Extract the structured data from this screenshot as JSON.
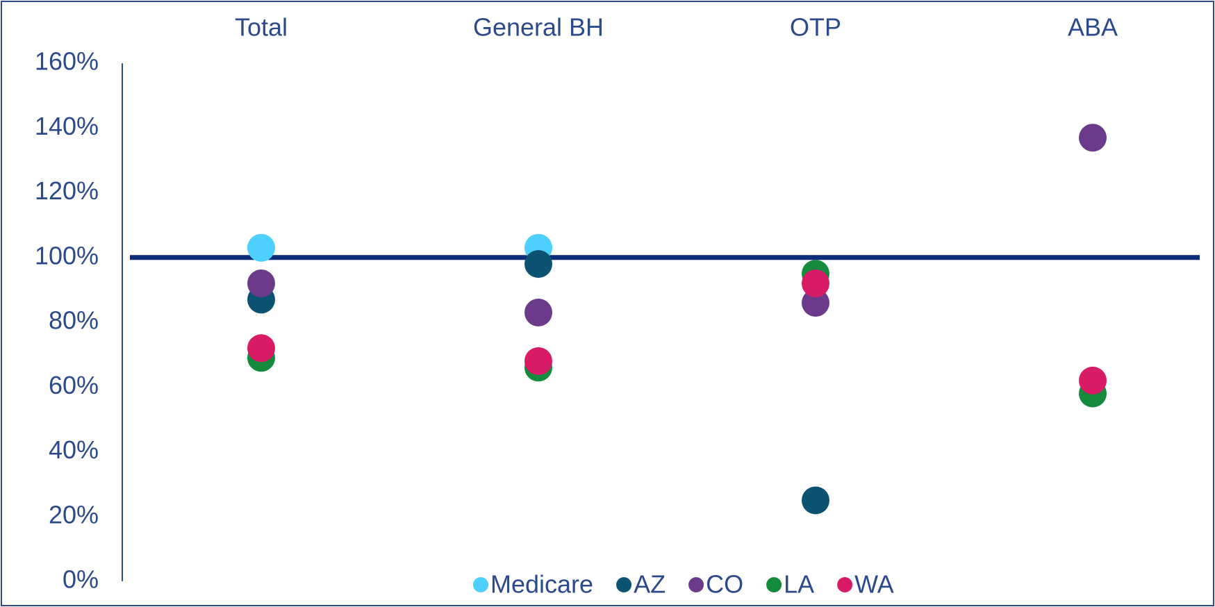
{
  "chart_data": {
    "type": "scatter",
    "categories": [
      "Total",
      "General BH",
      "OTP",
      "ABA"
    ],
    "series": [
      {
        "name": "Medicare",
        "color": "#4dcfff",
        "values": [
          103,
          103,
          null,
          null
        ]
      },
      {
        "name": "AZ",
        "color": "#0b5370",
        "values": [
          87,
          98,
          25,
          null
        ]
      },
      {
        "name": "CO",
        "color": "#6b3a8a",
        "values": [
          92,
          83,
          86,
          137
        ]
      },
      {
        "name": "LA",
        "color": "#138a3c",
        "values": [
          69,
          66,
          95,
          58
        ]
      },
      {
        "name": "WA",
        "color": "#d91a66",
        "values": [
          72,
          68,
          92,
          62
        ]
      }
    ],
    "reference_line": 100,
    "ylim": [
      0,
      160
    ],
    "yticks": [
      {
        "value": 0,
        "label": "0%"
      },
      {
        "value": 20,
        "label": "20%"
      },
      {
        "value": 40,
        "label": "40%"
      },
      {
        "value": 60,
        "label": "60%"
      },
      {
        "value": 80,
        "label": "80%"
      },
      {
        "value": 100,
        "label": "100%"
      },
      {
        "value": 120,
        "label": "120%"
      },
      {
        "value": 140,
        "label": "140%"
      },
      {
        "value": 160,
        "label": "160%"
      }
    ],
    "legend": "bottom"
  }
}
